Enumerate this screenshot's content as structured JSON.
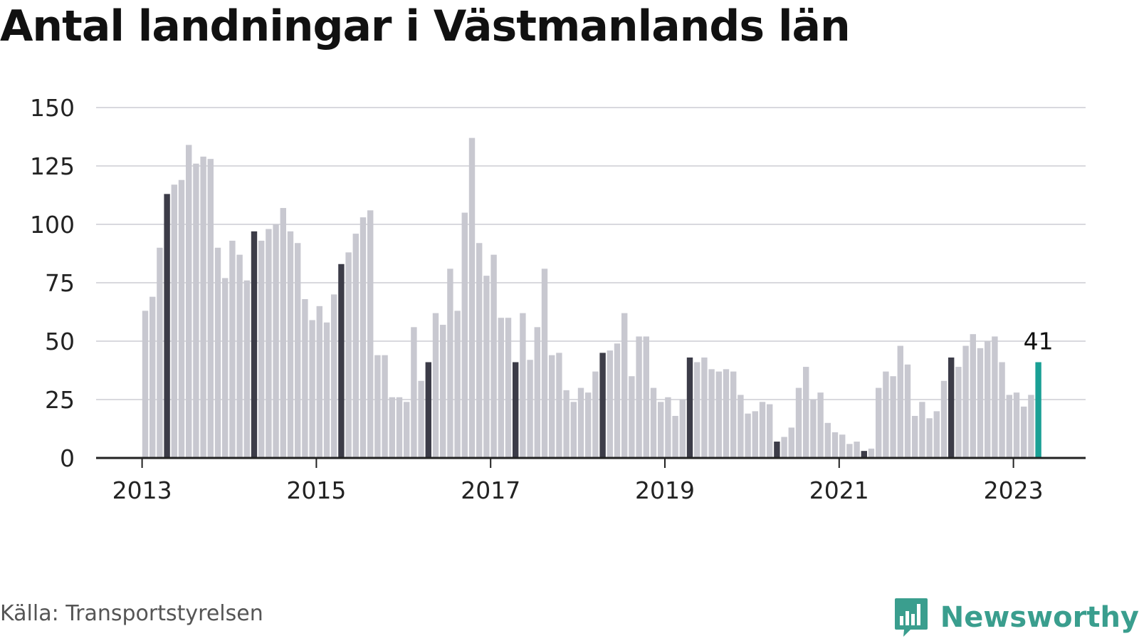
{
  "title": "Antal landningar i Västmanlands län",
  "source": "Källa: Transportstyrelsen",
  "brand": {
    "name": "Newsworthy",
    "icon": "newsworthy-logo-icon",
    "color": "#3a9e8e"
  },
  "chart_data": {
    "type": "bar",
    "title": "Antal landningar i Västmanlands län",
    "xlabel": "",
    "ylabel": "",
    "ylim": [
      0,
      150
    ],
    "y_ticks": [
      "0",
      "25",
      "50",
      "75",
      "100",
      "125",
      "150"
    ],
    "x_ticks": [
      "2013",
      "2015",
      "2017",
      "2019",
      "2021",
      "2023"
    ],
    "grid": true,
    "colors": {
      "default": "#c8c8d0",
      "highlight": "#3c3c48",
      "latest": "#1aa095"
    },
    "latest_value_label": "41",
    "start": "2013-01",
    "end": "2023-04",
    "values": [
      63,
      69,
      90,
      113,
      117,
      119,
      134,
      126,
      129,
      128,
      90,
      77,
      93,
      87,
      76,
      97,
      93,
      98,
      100,
      107,
      97,
      92,
      68,
      59,
      65,
      58,
      70,
      83,
      88,
      96,
      103,
      106,
      44,
      44,
      26,
      26,
      24,
      56,
      33,
      41,
      62,
      57,
      81,
      63,
      105,
      137,
      92,
      78,
      87,
      60,
      60,
      41,
      62,
      42,
      56,
      81,
      44,
      45,
      29,
      24,
      30,
      28,
      37,
      45,
      46,
      49,
      62,
      35,
      52,
      52,
      30,
      24,
      26,
      18,
      25,
      43,
      41,
      43,
      38,
      37,
      38,
      37,
      27,
      19,
      20,
      24,
      23,
      7,
      9,
      13,
      30,
      39,
      25,
      28,
      15,
      11,
      10,
      6,
      7,
      3,
      4,
      30,
      37,
      35,
      48,
      40,
      18,
      24,
      17,
      20,
      33,
      43,
      39,
      48,
      53,
      47,
      50,
      52,
      41,
      27,
      28,
      22,
      27,
      41
    ],
    "highlight_months": [
      "2013-04",
      "2014-04",
      "2015-04",
      "2016-04",
      "2017-04",
      "2018-04",
      "2019-04",
      "2020-04",
      "2021-04",
      "2022-04"
    ],
    "latest_month": "2023-04"
  }
}
